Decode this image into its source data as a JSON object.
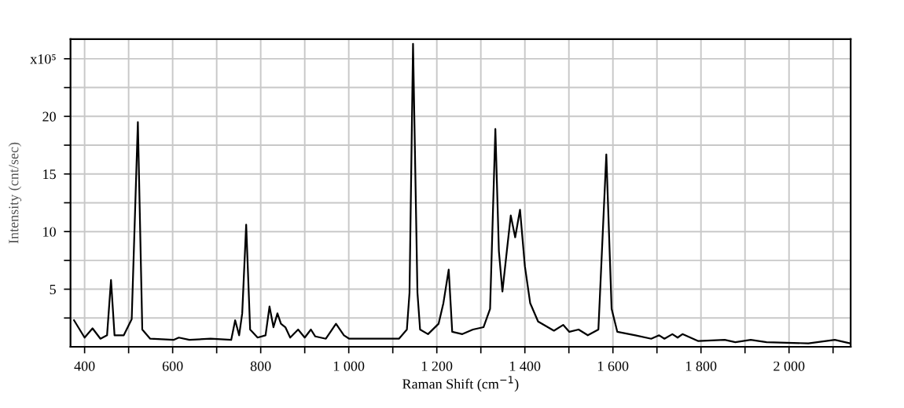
{
  "chart_data": {
    "type": "line",
    "xlabel": "Raman Shift (cm$^{−1}$)",
    "ylabel": "Intensity (cnt/sec)",
    "x": [
      376,
      400,
      418,
      436,
      451,
      460,
      468,
      489,
      507,
      521,
      531,
      549,
      602,
      614,
      638,
      686,
      733,
      742,
      751,
      758,
      767,
      776,
      793,
      811,
      820,
      829,
      838,
      846,
      856,
      867,
      885,
      900,
      914,
      924,
      948,
      971,
      989,
      1001,
      1043,
      1114,
      1132,
      1138,
      1146,
      1156,
      1162,
      1180,
      1204,
      1215,
      1227,
      1235,
      1258,
      1282,
      1306,
      1321,
      1333,
      1341,
      1349,
      1359,
      1368,
      1378,
      1389,
      1400,
      1412,
      1430,
      1466,
      1487,
      1501,
      1522,
      1543,
      1567,
      1585,
      1597,
      1610,
      1651,
      1687,
      1705,
      1717,
      1735,
      1747,
      1758,
      1794,
      1854,
      1878,
      1913,
      1949,
      2044,
      2104,
      2139
    ],
    "series": [
      {
        "color": "#000000",
        "values": [
          2.3,
          0.8,
          1.6,
          0.7,
          1.0,
          5.8,
          1.0,
          1.0,
          2.4,
          19.5,
          1.5,
          0.7,
          0.6,
          0.8,
          0.6,
          0.7,
          0.6,
          2.3,
          1.0,
          2.9,
          10.6,
          1.5,
          0.8,
          1.0,
          3.5,
          1.7,
          2.9,
          2.0,
          1.7,
          0.8,
          1.5,
          0.8,
          1.5,
          0.9,
          0.7,
          2.0,
          1.0,
          0.7,
          0.7,
          0.7,
          1.5,
          4.7,
          26.3,
          4.7,
          1.5,
          1.1,
          2.0,
          3.8,
          6.7,
          1.3,
          1.1,
          1.5,
          1.7,
          3.3,
          18.9,
          8.3,
          4.8,
          8.3,
          11.4,
          9.5,
          11.9,
          7.0,
          3.8,
          2.2,
          1.4,
          1.9,
          1.3,
          1.5,
          1.0,
          1.5,
          16.7,
          3.3,
          1.3,
          1.0,
          0.7,
          1.0,
          0.7,
          1.1,
          0.8,
          1.1,
          0.5,
          0.6,
          0.4,
          0.6,
          0.4,
          0.3,
          0.6,
          0.3
        ]
      }
    ],
    "xlim": [
      368,
      2140
    ],
    "ylim": [
      0,
      26.7
    ],
    "xticks": [
      400,
      {
        "value": 500,
        "label": null
      },
      600,
      {
        "value": 700,
        "label": null
      },
      800,
      {
        "value": 900,
        "label": null
      },
      {
        "value": 1000,
        "label": "1 000"
      },
      {
        "value": 1100,
        "label": null
      },
      {
        "value": 1200,
        "label": "1 200"
      },
      {
        "value": 1300,
        "label": null
      },
      {
        "value": 1400,
        "label": "1 400"
      },
      {
        "value": 1500,
        "label": null
      },
      {
        "value": 1600,
        "label": "1 600"
      },
      {
        "value": 1700,
        "label": null
      },
      {
        "value": 1800,
        "label": "1 800"
      },
      {
        "value": 1900,
        "label": null
      },
      {
        "value": 2000,
        "label": "2 000"
      },
      {
        "value": 2100,
        "label": null
      }
    ],
    "yticks": [
      {
        "value": 2.5,
        "label": null
      },
      5,
      {
        "value": 7.5,
        "label": null
      },
      10,
      {
        "value": 12.5,
        "label": null
      },
      15,
      {
        "value": 17.5,
        "label": null
      },
      20,
      {
        "value": 22.5,
        "label": null
      },
      {
        "value": 25,
        "label": "x10⁵"
      }
    ],
    "grid": true,
    "marker": "none",
    "line_style": "solid"
  }
}
